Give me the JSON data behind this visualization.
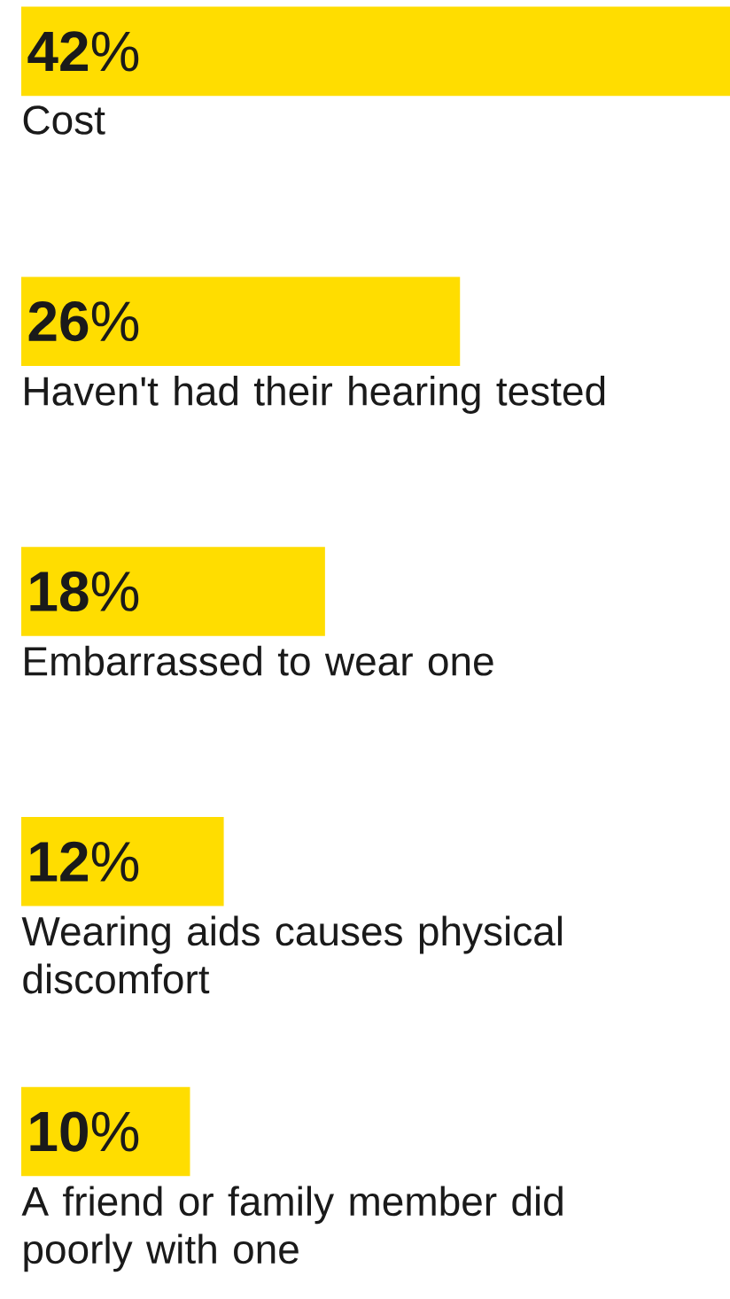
{
  "chart_data": {
    "type": "bar",
    "orientation": "horizontal",
    "categories": [
      "Cost",
      "Haven't had their hearing tested",
      "Embarrassed to wear one",
      "Wearing aids causes physical discomfort",
      "A friend or family member did poorly with one"
    ],
    "values": [
      42,
      26,
      18,
      12,
      10
    ],
    "value_labels": [
      "**42**%",
      "**26**%",
      "**18**%",
      "**12**%",
      "**10**%"
    ],
    "color": "#ffdd00"
  }
}
